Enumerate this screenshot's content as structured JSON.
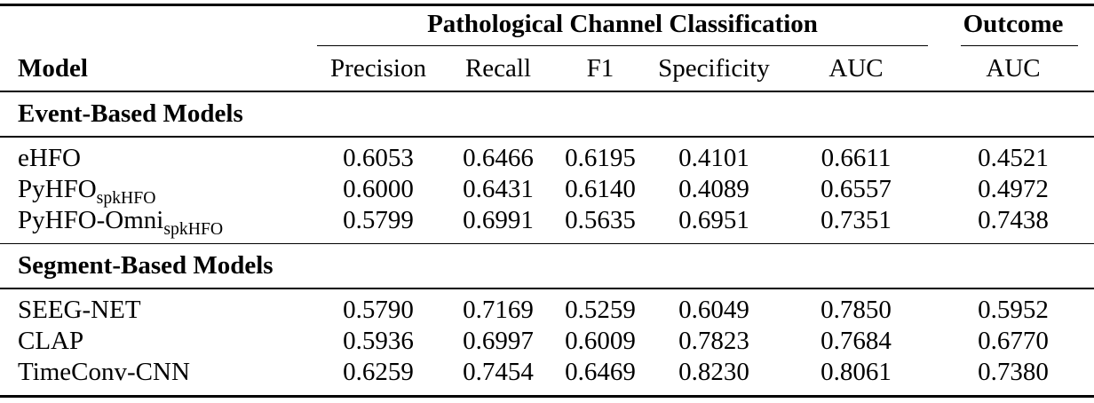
{
  "table": {
    "group_headers": {
      "pathological": "Pathological Channel Classification",
      "outcome": "Outcome"
    },
    "columns": {
      "model": "Model",
      "metrics": [
        "Precision",
        "Recall",
        "F1",
        "Specificity",
        "AUC"
      ],
      "outcome_metric": "AUC"
    },
    "sections": [
      {
        "title": "Event-Based Models",
        "rows": [
          {
            "model": "eHFO",
            "model_sub": "",
            "values": [
              "0.6053",
              "0.6466",
              "0.6195",
              "0.4101",
              "0.6611",
              "0.4521"
            ]
          },
          {
            "model": "PyHFO",
            "model_sub": "spkHFO",
            "values": [
              "0.6000",
              "0.6431",
              "0.6140",
              "0.4089",
              "0.6557",
              "0.4972"
            ]
          },
          {
            "model": "PyHFO-Omni",
            "model_sub": "spkHFO",
            "values": [
              "0.5799",
              "0.6991",
              "0.5635",
              "0.6951",
              "0.7351",
              "0.7438"
            ]
          }
        ]
      },
      {
        "title": "Segment-Based Models",
        "rows": [
          {
            "model": "SEEG-NET",
            "model_sub": "",
            "values": [
              "0.5790",
              "0.7169",
              "0.5259",
              "0.6049",
              "0.7850",
              "0.5952"
            ]
          },
          {
            "model": "CLAP",
            "model_sub": "",
            "values": [
              "0.5936",
              "0.6997",
              "0.6009",
              "0.7823",
              "0.7684",
              "0.6770"
            ]
          },
          {
            "model": "TimeConv-CNN",
            "model_sub": "",
            "values": [
              "0.6259",
              "0.7454",
              "0.6469",
              "0.8230",
              "0.8061",
              "0.7380"
            ]
          }
        ]
      }
    ],
    "colors": {
      "text": "#000000",
      "background": "#ffffff",
      "rule": "#000000"
    }
  }
}
